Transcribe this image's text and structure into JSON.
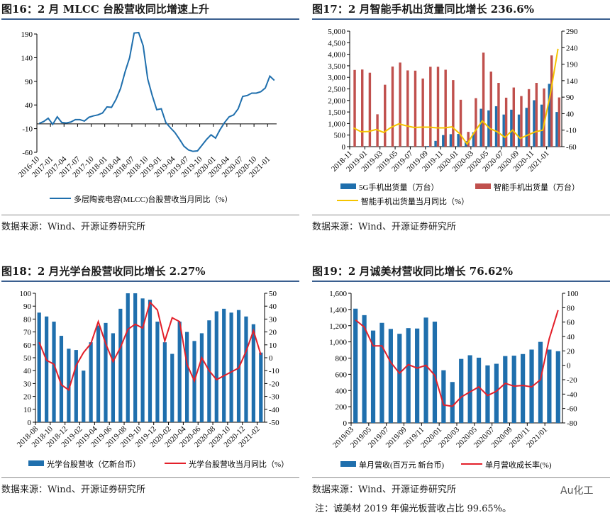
{
  "panels": {
    "t16": "图16：2 月 MLCC 台股营收同比增速上升",
    "t17": "图17：2 月智能手机出货量同比增长 236.6%",
    "t18": "图18：2 月光学台股营收同比增长 2.27%",
    "t19": "图19：2 月诚美材营收同比增长 76.62%",
    "source": "数据来源：Wind、开源证券研究所",
    "note": "注：诚美材 2019 年偏光板营收占比 99.65%。",
    "watermark": "Au化工"
  },
  "chart_data": [
    {
      "type": "line",
      "title": "2 月 MLCC 台股营收同比增速上升",
      "start": "2016-10",
      "xticks": [
        "2016-10",
        "2017-01",
        "2017-04",
        "2017-07",
        "2017-10",
        "2018-01",
        "2018-04",
        "2018-07",
        "2018-10",
        "2019-01",
        "2019-04",
        "2019-07",
        "2019-10",
        "2020-01",
        "2020-04",
        "2020-07",
        "2020-10",
        "2021-01"
      ],
      "ylim": [
        -60,
        190
      ],
      "yticks": [
        190,
        140,
        90,
        40,
        -10,
        -60
      ],
      "series": [
        {
          "name": "多层陶瓷电容(MLCC)台股营收当月同比（%）",
          "color": "#1f6fad",
          "axis": "left",
          "values": [
            1,
            5,
            12,
            -1,
            15,
            3,
            2,
            4,
            9,
            9,
            6,
            14,
            17,
            19,
            23,
            36,
            35,
            52,
            75,
            110,
            140,
            192,
            193,
            165,
            95,
            60,
            30,
            32,
            3,
            -8,
            -18,
            -32,
            -47,
            -55,
            -58,
            -57,
            -45,
            -33,
            -23,
            -30,
            -12,
            3,
            15,
            19,
            32,
            58,
            60,
            65,
            65,
            68,
            76,
            101,
            92
          ]
        }
      ]
    },
    {
      "type": "bar+line",
      "title": "2 月智能手机出货量同比增长 236.6%",
      "start": "2018-11",
      "xticks": [
        "2018-11",
        "2019-01",
        "2019-03",
        "2019-05",
        "2019-07",
        "2019-09",
        "2019-11",
        "2020-01",
        "2020-03",
        "2020-05",
        "2020-07",
        "2020-09",
        "2020-11",
        "2021-01"
      ],
      "ylim": [
        0,
        5000
      ],
      "yticks": [
        "5,000",
        "4,500",
        "4,000",
        "3,500",
        "3,000",
        "2,500",
        "2,000",
        "1,500",
        "1,000",
        "500",
        "0"
      ],
      "y2lim": [
        -60,
        290
      ],
      "y2ticks": [
        290,
        240,
        190,
        140,
        90,
        40,
        -10,
        -60
      ],
      "series": [
        {
          "name": "5G手机出货量（万台）",
          "kind": "bar",
          "color": "#1f6fad",
          "axis": "left",
          "values": [
            0,
            0,
            0,
            0,
            0,
            0,
            0,
            0,
            0,
            0,
            30,
            250,
            500,
            540,
            550,
            240,
            620,
            1640,
            1570,
            1750,
            1390,
            1600,
            1390,
            1680,
            2010,
            1820,
            2720,
            1500
          ]
        },
        {
          "name": "智能手机出货量（万台）",
          "kind": "bar",
          "color": "#c0504d",
          "axis": "left",
          "values": [
            3320,
            3340,
            3200,
            1400,
            2680,
            3470,
            3640,
            3300,
            3290,
            2950,
            3460,
            3460,
            3330,
            2880,
            2030,
            640,
            2100,
            4070,
            3250,
            2760,
            2120,
            2560,
            2190,
            2490,
            2760,
            2520,
            3950,
            2130
          ]
        },
        {
          "name": "智能手机出货量当月同比（%）",
          "kind": "line",
          "color": "#f5c400",
          "axis": "right",
          "values": [
            -3,
            -15,
            -14,
            -8,
            -17,
            -1,
            9,
            3,
            -2,
            -1,
            -1,
            -3,
            -3,
            0,
            -20,
            -52,
            -15,
            18,
            -5,
            -15,
            -32,
            -10,
            -35,
            -25,
            -15,
            -10,
            100,
            236.6
          ]
        }
      ]
    },
    {
      "type": "bar+line",
      "title": "2 月光学台股营收同比增长 2.27%",
      "start": "2018-08",
      "xticks": [
        "2018-08",
        "2018-10",
        "2018-12",
        "2019-02",
        "2019-04",
        "2019-06",
        "2019-08",
        "2019-10",
        "2019-12",
        "2020-02",
        "2020-04",
        "2020-06",
        "2020-08",
        "2020-10",
        "2020-12",
        "2021-02"
      ],
      "ylim": [
        0,
        100
      ],
      "yticks": [
        100,
        90,
        80,
        70,
        60,
        50,
        40,
        30,
        20,
        10,
        0
      ],
      "y2lim": [
        -50,
        50
      ],
      "y2ticks": [
        50,
        40,
        30,
        20,
        10,
        0,
        -10,
        -20,
        -30,
        -40,
        -50
      ],
      "series": [
        {
          "name": "光学台股营收（亿新台币）",
          "kind": "bar",
          "color": "#1f6fad",
          "axis": "left",
          "values": [
            85,
            82,
            78,
            67,
            57,
            56,
            40,
            62,
            75,
            77,
            69,
            88,
            100,
            100,
            96,
            95,
            78,
            62,
            53,
            78,
            70,
            63,
            69,
            79,
            86,
            88,
            85,
            87,
            82,
            76,
            54
          ]
        },
        {
          "name": "光学台股营收当月同比（%）",
          "kind": "line",
          "color": "#e3202a",
          "axis": "right",
          "values": [
            12,
            -2,
            -5,
            -21,
            -25,
            -6,
            4,
            11,
            28,
            11,
            -3,
            8,
            22,
            26,
            23,
            43,
            37,
            13,
            31,
            28,
            -5,
            -18,
            0,
            -10,
            -17,
            -14,
            -11,
            -8,
            5,
            21,
            2.27
          ]
        }
      ]
    },
    {
      "type": "bar+line",
      "title": "2 月诚美材营收同比增长 76.62%",
      "start": "2019/03",
      "xticks": [
        "2019/03",
        "2019/05",
        "2019/07",
        "2019/09",
        "2019/11",
        "2020/01",
        "2020/03",
        "2020/05",
        "2020/07",
        "2020/09",
        "2020/11",
        "2021/01"
      ],
      "ylim": [
        0,
        1600
      ],
      "yticks": [
        "1,600",
        "1,400",
        "1,200",
        "1,000",
        "800",
        "600",
        "400",
        "200",
        "0"
      ],
      "y2lim": [
        -80,
        100
      ],
      "y2ticks": [
        100,
        80,
        60,
        40,
        20,
        0,
        -20,
        -40,
        -60,
        -80
      ],
      "series": [
        {
          "name": "单月营收(百万元 新台币)",
          "kind": "bar",
          "color": "#1f6fad",
          "axis": "left",
          "values": [
            1410,
            1330,
            1140,
            1235,
            1160,
            1100,
            1170,
            1165,
            1300,
            1250,
            650,
            505,
            790,
            835,
            805,
            710,
            730,
            825,
            830,
            850,
            905,
            1000,
            905,
            885
          ]
        },
        {
          "name": "单月营收成长率(%)",
          "kind": "line",
          "color": "#e3202a",
          "axis": "right",
          "values": [
            63,
            53,
            27,
            27,
            4,
            -11,
            1,
            -4,
            0,
            -14,
            -55,
            -57,
            -44,
            -37,
            -30,
            -42,
            -36,
            -25,
            -29,
            -28,
            -30,
            -20,
            37,
            76.62
          ]
        }
      ]
    }
  ]
}
